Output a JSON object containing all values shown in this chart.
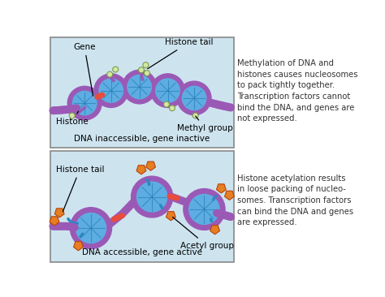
{
  "fig_width": 4.74,
  "fig_height": 3.66,
  "dpi": 100,
  "bg_color": "#ffffff",
  "panel_bg": "#cde4ef",
  "panel_border": "#888888",
  "dna_color": "#9b59b6",
  "histone_outer": "#9b59b6",
  "histone_inner": "#5dade2",
  "methyl_color": "#d4e8a0",
  "methyl_border": "#7a9a50",
  "acetyl_color": "#e67e22",
  "label_color": "#000000",
  "text_color": "#333333",
  "line_color": "#000000",
  "dna_stripe_color": "#e74c3c",
  "panel1_caption": "DNA inaccessible, gene inactive",
  "panel2_caption": "DNA accessible, gene active",
  "panel1_text": "Methylation of DNA and\nhistones causes nucleosomes\nto pack tightly together.\nTranscription factors cannot\nbind the DNA, and genes are\nnot expressed.",
  "panel2_text": "Histone acetylation results\nin loose packing of nucleo-\nsomes. Transcription factors\ncan bind the DNA and genes\nare expressed.",
  "label1a": "Gene",
  "label1b": "Histone tail",
  "label1c": "Histone",
  "label1d": "Methyl group",
  "label2a": "Histone tail",
  "label2b": "Acetyl group"
}
